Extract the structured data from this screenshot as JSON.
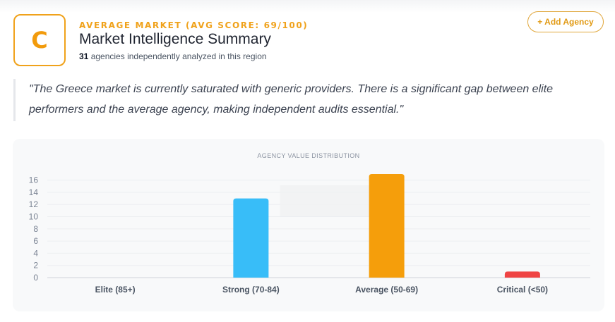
{
  "header": {
    "grade": "C",
    "eyebrow": "AVERAGE MARKET (AVG SCORE: 69/100)",
    "title": "Market Intelligence Summary",
    "agency_count": "31",
    "subtitle_rest": " agencies independently analyzed in this region"
  },
  "actions": {
    "add_agency_label": "+ Add Agency"
  },
  "quote": {
    "text": "\"The Greece market is currently saturated with generic providers. There is a significant gap between elite performers and the average agency, making independent audits essential.\""
  },
  "colors": {
    "accent": "#f0a21b",
    "elite": "#22c55e",
    "strong": "#38bdf8",
    "average": "#f59e0b",
    "critical": "#ef4444"
  },
  "chart_data": {
    "type": "bar",
    "title": "AGENCY VALUE DISTRIBUTION",
    "categories": [
      "Elite (85+)",
      "Strong (70-84)",
      "Average (50-69)",
      "Critical (<50)"
    ],
    "values": [
      0,
      13,
      17,
      1
    ],
    "yticks": [
      0,
      2,
      4,
      6,
      8,
      10,
      12,
      14,
      16
    ],
    "ylim": [
      0,
      17
    ],
    "xlabel": "",
    "ylabel": "",
    "grid": true,
    "legend": "none"
  }
}
